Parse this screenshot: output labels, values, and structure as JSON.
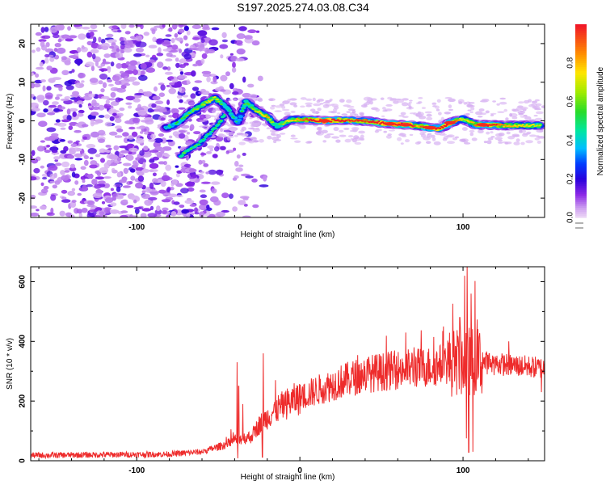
{
  "title": "S197.2025.274.03.08.C34",
  "colors": {
    "snr_line": "#ee2b2b",
    "frame": "#000000",
    "background": "#ffffff"
  },
  "chart_data": [
    {
      "type": "heatmap",
      "name": "spectrogram",
      "xlabel": "Height of straight line (km)",
      "ylabel": "Frequency (Hz)",
      "xlim": [
        -165,
        150
      ],
      "ylim": [
        -25,
        25
      ],
      "xticks": [
        -100,
        0,
        100
      ],
      "yticks": [
        -20,
        -10,
        0,
        10,
        20
      ],
      "grid": false,
      "noise_region_x": [
        -165,
        -60
      ],
      "ridge": [
        {
          "x": -82,
          "f": -1.8,
          "amp": 0.35
        },
        {
          "x": -75,
          "f": -0.6,
          "amp": 0.4
        },
        {
          "x": -68,
          "f": 2.0,
          "amp": 0.45
        },
        {
          "x": -60,
          "f": 4.0,
          "amp": 0.5
        },
        {
          "x": -52,
          "f": 6.0,
          "amp": 0.55
        },
        {
          "x": -44,
          "f": 3.0,
          "amp": 0.4
        },
        {
          "x": -38,
          "f": -0.5,
          "amp": 0.35
        },
        {
          "x": -33,
          "f": 5.0,
          "amp": 0.45
        },
        {
          "x": -28,
          "f": 3.0,
          "amp": 0.5
        },
        {
          "x": -20,
          "f": 1.0,
          "amp": 0.6
        },
        {
          "x": -14,
          "f": -1.5,
          "amp": 0.45
        },
        {
          "x": -6,
          "f": 0.3,
          "amp": 0.55
        },
        {
          "x": 5,
          "f": 0.3,
          "amp": 0.7
        },
        {
          "x": 15,
          "f": 0.0,
          "amp": 0.95
        },
        {
          "x": 25,
          "f": 0.2,
          "amp": 0.75
        },
        {
          "x": 40,
          "f": 0.0,
          "amp": 0.7
        },
        {
          "x": 55,
          "f": -0.8,
          "amp": 0.9
        },
        {
          "x": 65,
          "f": -1.0,
          "amp": 0.95
        },
        {
          "x": 72,
          "f": -1.3,
          "amp": 0.6
        },
        {
          "x": 80,
          "f": -1.8,
          "amp": 0.85
        },
        {
          "x": 86,
          "f": -2.0,
          "amp": 0.8
        },
        {
          "x": 92,
          "f": -0.5,
          "amp": 0.9
        },
        {
          "x": 100,
          "f": 0.5,
          "amp": 0.5
        },
        {
          "x": 108,
          "f": -1.0,
          "amp": 0.65
        },
        {
          "x": 112,
          "f": -1.0,
          "amp": 0.95
        },
        {
          "x": 125,
          "f": -1.2,
          "amp": 0.6
        },
        {
          "x": 140,
          "f": -1.2,
          "amp": 0.55
        },
        {
          "x": 148,
          "f": -1.2,
          "amp": 0.5
        }
      ],
      "lower_branch": [
        {
          "x": -73,
          "f": -9.0
        },
        {
          "x": -68,
          "f": -7.5
        },
        {
          "x": -62,
          "f": -6.0
        },
        {
          "x": -56,
          "f": -3.5
        },
        {
          "x": -50,
          "f": -1.0
        },
        {
          "x": -44,
          "f": 3.0
        }
      ]
    },
    {
      "type": "colorbar",
      "name": "colorbar",
      "label": "Normalized spectral amplitude",
      "range": [
        0,
        1
      ],
      "ticks": [
        "0.0",
        "0.2",
        "0.4",
        "0.6",
        "0.8"
      ],
      "tick_values": [
        0.0,
        0.2,
        0.4,
        0.6,
        0.8
      ]
    },
    {
      "type": "line",
      "name": "snr",
      "xlabel": "Height of straight line (km)",
      "ylabel": "SNR (10 * v/v)",
      "xlim": [
        -165,
        150
      ],
      "ylim": [
        0,
        650
      ],
      "xticks": [
        -100,
        0,
        100
      ],
      "yticks": [
        0,
        200,
        400,
        600
      ],
      "grid": false,
      "envelope": [
        [
          -165,
          18
        ],
        [
          -120,
          20
        ],
        [
          -80,
          22
        ],
        [
          -60,
          30
        ],
        [
          -45,
          55
        ],
        [
          -40,
          70
        ],
        [
          -30,
          80
        ],
        [
          -25,
          120
        ],
        [
          -15,
          170
        ],
        [
          -5,
          200
        ],
        [
          10,
          235
        ],
        [
          25,
          265
        ],
        [
          40,
          290
        ],
        [
          60,
          305
        ],
        [
          80,
          315
        ],
        [
          95,
          330
        ],
        [
          105,
          335
        ],
        [
          120,
          325
        ],
        [
          150,
          310
        ]
      ],
      "spikes": [
        [
          -38.5,
          330
        ],
        [
          -37.5,
          250
        ],
        [
          -38,
          8
        ],
        [
          -35,
          190
        ],
        [
          -22.5,
          360
        ],
        [
          -23,
          12
        ],
        [
          -15,
          270
        ],
        [
          50,
          350
        ],
        [
          70,
          380
        ],
        [
          88,
          450
        ],
        [
          98,
          480
        ],
        [
          101,
          620
        ],
        [
          102,
          75
        ],
        [
          102.5,
          650
        ],
        [
          103.5,
          28
        ],
        [
          105,
          560
        ],
        [
          106,
          30
        ],
        [
          110,
          420
        ],
        [
          128,
          400
        ],
        [
          148,
          230
        ]
      ]
    }
  ]
}
